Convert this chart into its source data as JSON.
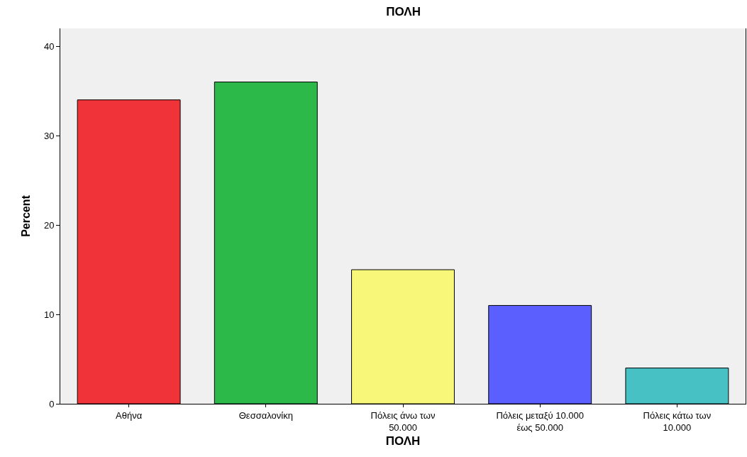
{
  "chart_data": {
    "type": "bar",
    "title": "ΠΟΛΗ",
    "xlabel": "ΠΟΛΗ",
    "ylabel": "Percent",
    "categories": [
      "Αθήνα",
      "Θεσσαλονίκη",
      "Πόλεις άνω των 50.000",
      "Πόλεις μεταξύ 10.000 έως 50.000",
      "Πόλεις κάτω των 10.000"
    ],
    "values": [
      34,
      36,
      15,
      11,
      4
    ],
    "colors": [
      "#ef3338",
      "#2db84a",
      "#f8f77a",
      "#5a5ffe",
      "#48c1c4"
    ],
    "ylim": [
      0,
      42
    ],
    "yticks": [
      0,
      10,
      20,
      30,
      40
    ],
    "grid": false,
    "legend": false
  }
}
